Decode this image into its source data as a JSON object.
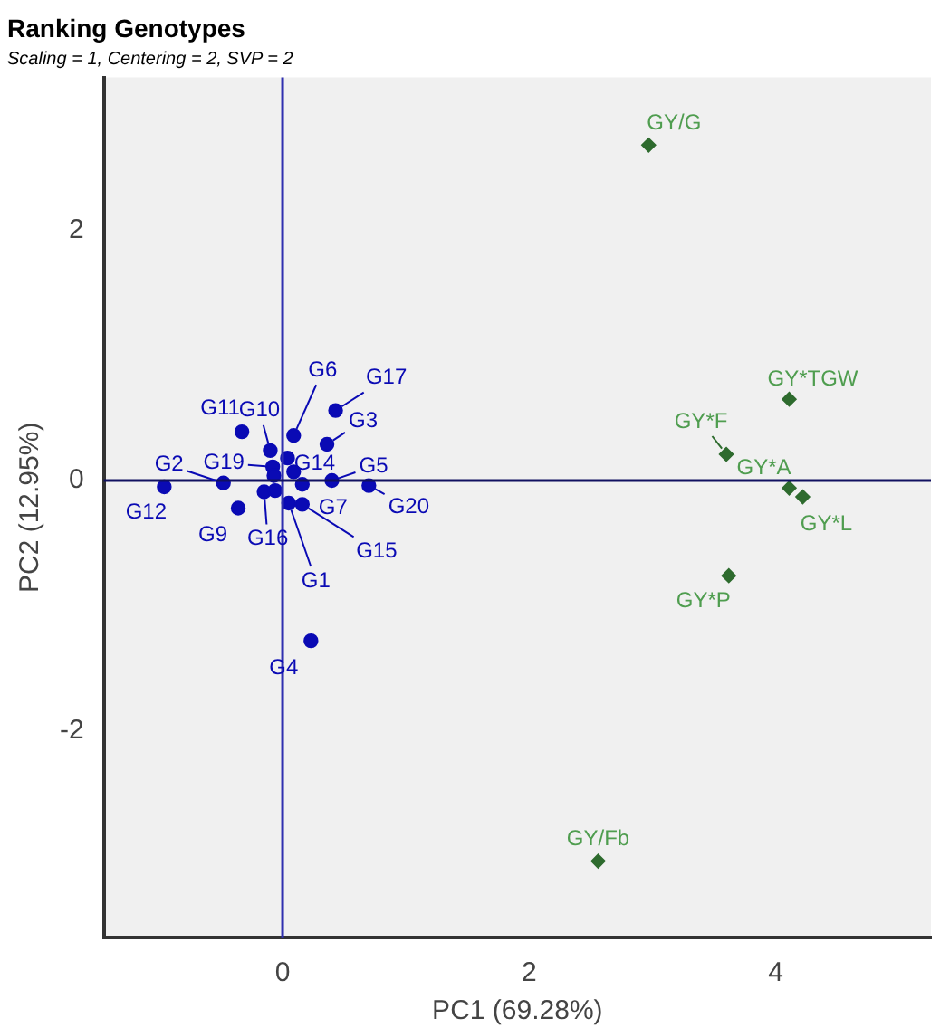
{
  "chart_data": {
    "type": "scatter",
    "title": "Ranking Genotypes",
    "subtitle": "Scaling = 1, Centering = 2, SVP = 2",
    "xlabel": "PC1 (69.28%)",
    "ylabel": "PC2 (12.95%)",
    "xlim": [
      -1.45,
      5.26
    ],
    "ylim": [
      -3.65,
      3.22
    ],
    "xticks": [
      0,
      2,
      4
    ],
    "yticks": [
      -2,
      0,
      2
    ],
    "grid": false,
    "legend": false,
    "series": [
      {
        "color": "#0a0ab4",
        "marker": "circle",
        "x": [
          -0.33,
          0.09,
          0.43,
          0.36,
          -0.1,
          0.04,
          -0.08,
          0.09,
          -0.07,
          0.16,
          0.4,
          0.7,
          -0.15,
          -0.06,
          0.05,
          0.16,
          0.23,
          -0.36,
          -0.48,
          -0.96
        ],
        "values": [
          0.39,
          0.36,
          0.56,
          0.29,
          0.24,
          0.18,
          0.11,
          0.07,
          0.04,
          -0.03,
          0,
          -0.04,
          -0.09,
          -0.08,
          -0.18,
          -0.19,
          -1.28,
          -0.22,
          -0.02,
          -0.05
        ],
        "value_labels": [
          "G11",
          "G6",
          "G17",
          "G3",
          "G10",
          "G14",
          "G19",
          null,
          null,
          "G7",
          "G5",
          "G20",
          "G16",
          null,
          "G1",
          "G15",
          "G4",
          "G9",
          "G2",
          "G12"
        ]
      },
      {
        "color": "#2e6b2e",
        "marker": "diamond",
        "x": [
          2.97,
          4.11,
          3.6,
          4.11,
          4.22,
          3.62,
          2.56
        ],
        "values": [
          2.68,
          0.65,
          0.21,
          -0.06,
          -0.13,
          -0.76,
          -3.04
        ],
        "value_labels": [
          "GY/G",
          "GY*TGW",
          "GY*F",
          "GY*A",
          "GY*L",
          "GY*P",
          "GY/Fb"
        ]
      }
    ],
    "ref_lines": [
      {
        "axis": "x",
        "value": 0,
        "color": "#3030b0"
      },
      {
        "axis": "y",
        "value": 0,
        "color": "#101060"
      }
    ]
  }
}
